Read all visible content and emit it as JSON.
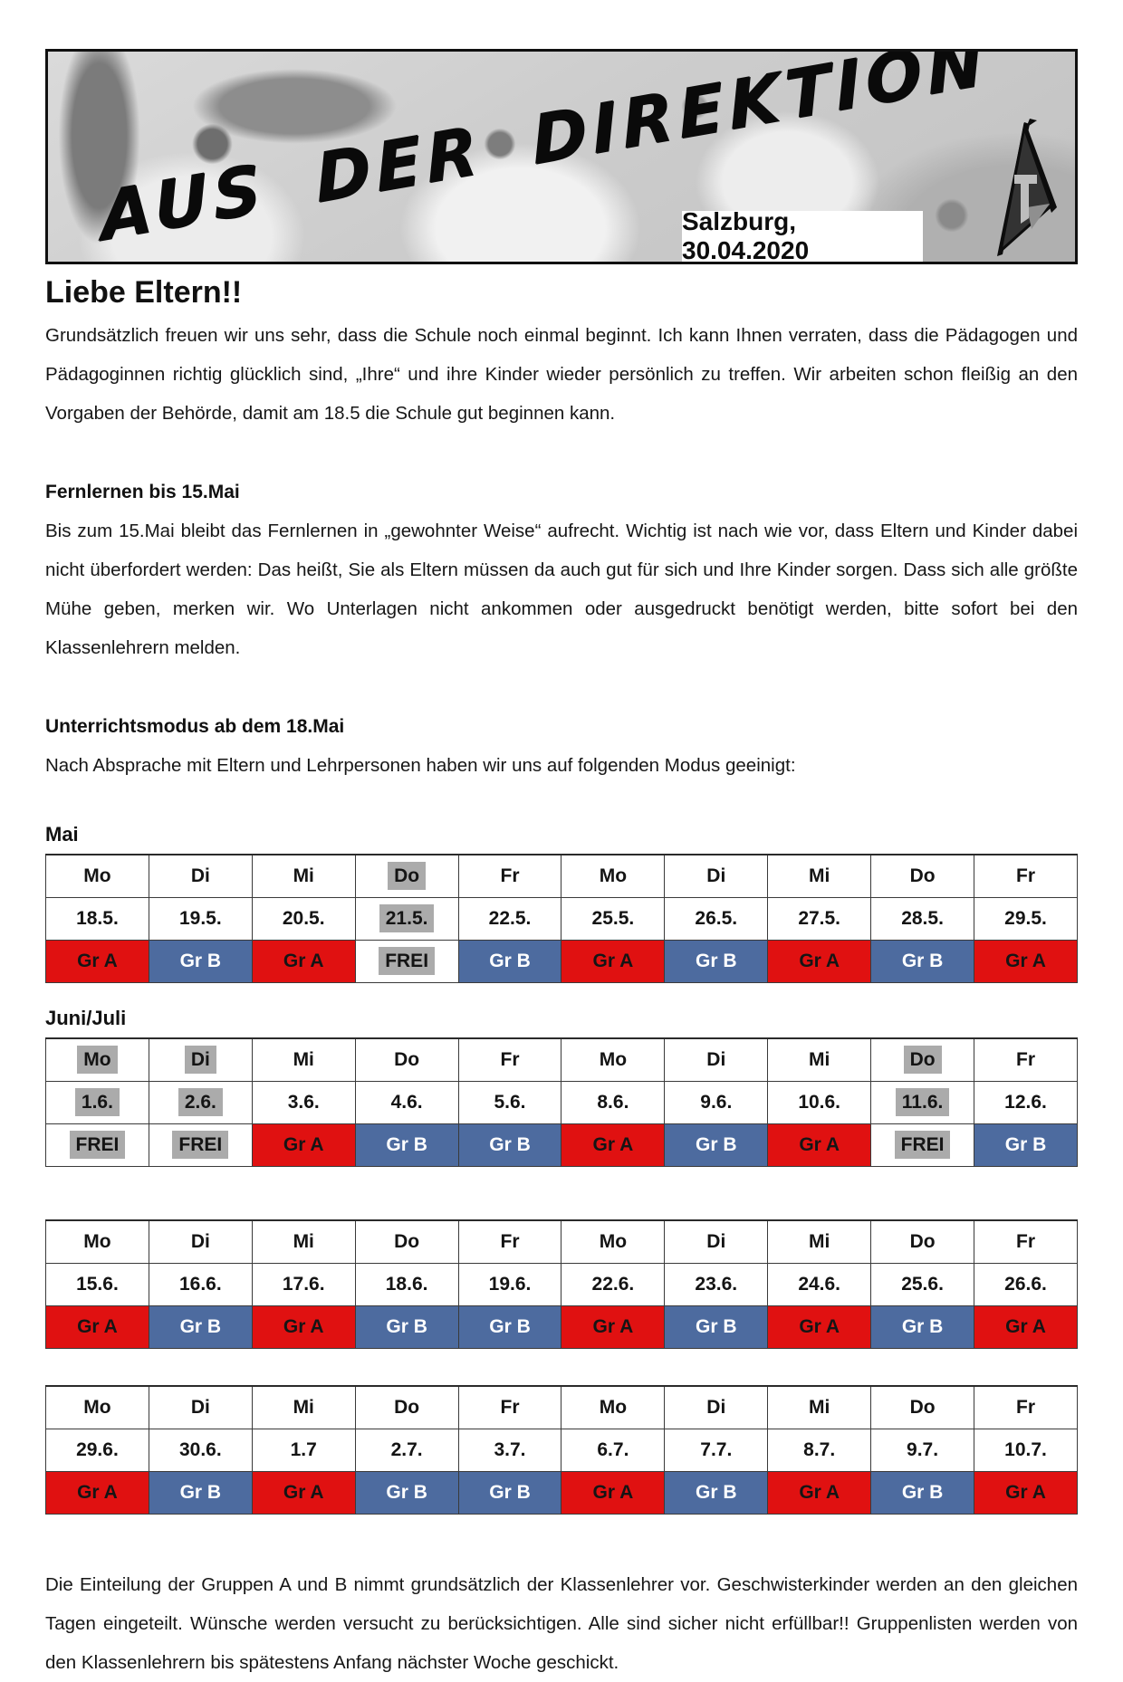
{
  "header": {
    "banner_title": "AUS DER DIREKTION",
    "date": "Salzburg, 30.04.2020",
    "logo_icon": "sail-logo"
  },
  "greeting": "Liebe Eltern!!",
  "intro": "Grundsätzlich freuen wir uns sehr, dass die Schule noch einmal beginnt. Ich kann Ihnen verraten, dass die Pädagogen und Pädagoginnen richtig glücklich sind, „Ihre“ und ihre Kinder wieder persönlich zu treffen. Wir arbeiten schon fleißig an den Vorgaben der Behörde, damit am 18.5 die Schule gut beginnen kann.",
  "sections": [
    {
      "heading": "Fernlernen bis 15.Mai",
      "body": "Bis zum 15.Mai bleibt das Fernlernen in „gewohnter Weise“ aufrecht. Wichtig ist nach wie vor, dass Eltern und Kinder dabei nicht überfordert werden: Das heißt, Sie als Eltern müssen da auch gut für sich und Ihre Kinder sorgen. Dass sich alle größte Mühe geben, merken wir. Wo Unterlagen nicht ankommen oder ausgedruckt benötigt werden, bitte sofort bei den Klassenlehrern melden."
    },
    {
      "heading": "Unterrichtsmodus ab dem 18.Mai",
      "body": "Nach Absprache mit Eltern und Lehrpersonen haben wir uns auf folgenden Modus geeinigt:"
    }
  ],
  "tables": [
    {
      "label": "Mai",
      "days": [
        {
          "text": "Mo",
          "highlight": false
        },
        {
          "text": "Di",
          "highlight": false
        },
        {
          "text": "Mi",
          "highlight": false
        },
        {
          "text": "Do",
          "highlight": true
        },
        {
          "text": "Fr",
          "highlight": false
        },
        {
          "text": "Mo",
          "highlight": false
        },
        {
          "text": "Di",
          "highlight": false
        },
        {
          "text": "Mi",
          "highlight": false
        },
        {
          "text": "Do",
          "highlight": false
        },
        {
          "text": "Fr",
          "highlight": false
        }
      ],
      "dates": [
        {
          "text": "18.5.",
          "highlight": false
        },
        {
          "text": "19.5.",
          "highlight": false
        },
        {
          "text": "20.5.",
          "highlight": false
        },
        {
          "text": "21.5.",
          "highlight": true
        },
        {
          "text": "22.5.",
          "highlight": false
        },
        {
          "text": "25.5.",
          "highlight": false
        },
        {
          "text": "26.5.",
          "highlight": false
        },
        {
          "text": "27.5.",
          "highlight": false
        },
        {
          "text": "28.5.",
          "highlight": false
        },
        {
          "text": "29.5.",
          "highlight": false
        }
      ],
      "groups": [
        {
          "text": "Gr A",
          "style": "a",
          "highlight": false
        },
        {
          "text": "Gr B",
          "style": "b",
          "highlight": false
        },
        {
          "text": "Gr A",
          "style": "a",
          "highlight": false
        },
        {
          "text": "FREI",
          "style": "frei",
          "highlight": true
        },
        {
          "text": "Gr B",
          "style": "b",
          "highlight": false
        },
        {
          "text": "Gr A",
          "style": "a",
          "highlight": false
        },
        {
          "text": "Gr B",
          "style": "b",
          "highlight": false
        },
        {
          "text": "Gr A",
          "style": "a",
          "highlight": false
        },
        {
          "text": "Gr B",
          "style": "b",
          "highlight": false
        },
        {
          "text": "Gr A",
          "style": "a",
          "highlight": false
        }
      ]
    },
    {
      "label": "Juni/Juli",
      "days": [
        {
          "text": "Mo",
          "highlight": true
        },
        {
          "text": "Di",
          "highlight": true
        },
        {
          "text": "Mi",
          "highlight": false
        },
        {
          "text": "Do",
          "highlight": false
        },
        {
          "text": "Fr",
          "highlight": false
        },
        {
          "text": "Mo",
          "highlight": false
        },
        {
          "text": "Di",
          "highlight": false
        },
        {
          "text": "Mi",
          "highlight": false
        },
        {
          "text": "Do",
          "highlight": true
        },
        {
          "text": "Fr",
          "highlight": false
        }
      ],
      "dates": [
        {
          "text": "1.6.",
          "highlight": true
        },
        {
          "text": "2.6.",
          "highlight": true
        },
        {
          "text": "3.6.",
          "highlight": false
        },
        {
          "text": "4.6.",
          "highlight": false
        },
        {
          "text": "5.6.",
          "highlight": false
        },
        {
          "text": "8.6.",
          "highlight": false
        },
        {
          "text": "9.6.",
          "highlight": false
        },
        {
          "text": "10.6.",
          "highlight": false
        },
        {
          "text": "11.6.",
          "highlight": true
        },
        {
          "text": "12.6.",
          "highlight": false
        }
      ],
      "groups": [
        {
          "text": "FREI",
          "style": "frei",
          "highlight": true
        },
        {
          "text": "FREI",
          "style": "frei",
          "highlight": true
        },
        {
          "text": "Gr A",
          "style": "a",
          "highlight": false
        },
        {
          "text": "Gr B",
          "style": "b",
          "highlight": false
        },
        {
          "text": "Gr B",
          "style": "b",
          "highlight": false
        },
        {
          "text": "Gr A",
          "style": "a",
          "highlight": false
        },
        {
          "text": "Gr B",
          "style": "b",
          "highlight": false
        },
        {
          "text": "Gr A",
          "style": "a",
          "highlight": false
        },
        {
          "text": "FREI",
          "style": "frei",
          "highlight": true
        },
        {
          "text": "Gr B",
          "style": "b",
          "highlight": false
        }
      ]
    },
    {
      "label": null,
      "days": [
        {
          "text": "Mo",
          "highlight": false
        },
        {
          "text": "Di",
          "highlight": false
        },
        {
          "text": "Mi",
          "highlight": false
        },
        {
          "text": "Do",
          "highlight": false
        },
        {
          "text": "Fr",
          "highlight": false
        },
        {
          "text": "Mo",
          "highlight": false
        },
        {
          "text": "Di",
          "highlight": false
        },
        {
          "text": "Mi",
          "highlight": false
        },
        {
          "text": "Do",
          "highlight": false
        },
        {
          "text": "Fr",
          "highlight": false
        }
      ],
      "dates": [
        {
          "text": "15.6.",
          "highlight": false
        },
        {
          "text": "16.6.",
          "highlight": false
        },
        {
          "text": "17.6.",
          "highlight": false
        },
        {
          "text": "18.6.",
          "highlight": false
        },
        {
          "text": "19.6.",
          "highlight": false
        },
        {
          "text": "22.6.",
          "highlight": false
        },
        {
          "text": "23.6.",
          "highlight": false
        },
        {
          "text": "24.6.",
          "highlight": false
        },
        {
          "text": "25.6.",
          "highlight": false
        },
        {
          "text": "26.6.",
          "highlight": false
        }
      ],
      "groups": [
        {
          "text": "Gr A",
          "style": "a",
          "highlight": false
        },
        {
          "text": "Gr B",
          "style": "b",
          "highlight": false
        },
        {
          "text": "Gr A",
          "style": "a",
          "highlight": false
        },
        {
          "text": "Gr B",
          "style": "b",
          "highlight": false
        },
        {
          "text": "Gr B",
          "style": "b",
          "highlight": false
        },
        {
          "text": "Gr A",
          "style": "a",
          "highlight": false
        },
        {
          "text": "Gr B",
          "style": "b",
          "highlight": false
        },
        {
          "text": "Gr A",
          "style": "a",
          "highlight": false
        },
        {
          "text": "Gr B",
          "style": "b",
          "highlight": false
        },
        {
          "text": "Gr A",
          "style": "a",
          "highlight": false
        }
      ]
    },
    {
      "label": null,
      "days": [
        {
          "text": "Mo",
          "highlight": false
        },
        {
          "text": "Di",
          "highlight": false
        },
        {
          "text": "Mi",
          "highlight": false
        },
        {
          "text": "Do",
          "highlight": false
        },
        {
          "text": "Fr",
          "highlight": false
        },
        {
          "text": "Mo",
          "highlight": false
        },
        {
          "text": "Di",
          "highlight": false
        },
        {
          "text": "Mi",
          "highlight": false
        },
        {
          "text": "Do",
          "highlight": false
        },
        {
          "text": "Fr",
          "highlight": false
        }
      ],
      "dates": [
        {
          "text": "29.6.",
          "highlight": false
        },
        {
          "text": "30.6.",
          "highlight": false
        },
        {
          "text": "1.7",
          "highlight": false
        },
        {
          "text": "2.7.",
          "highlight": false
        },
        {
          "text": "3.7.",
          "highlight": false
        },
        {
          "text": "6.7.",
          "highlight": false
        },
        {
          "text": "7.7.",
          "highlight": false
        },
        {
          "text": "8.7.",
          "highlight": false
        },
        {
          "text": "9.7.",
          "highlight": false
        },
        {
          "text": "10.7.",
          "highlight": false
        }
      ],
      "groups": [
        {
          "text": "Gr A",
          "style": "a",
          "highlight": false
        },
        {
          "text": "Gr B",
          "style": "b",
          "highlight": false
        },
        {
          "text": "Gr A",
          "style": "a",
          "highlight": false
        },
        {
          "text": "Gr B",
          "style": "b",
          "highlight": false
        },
        {
          "text": "Gr B",
          "style": "b",
          "highlight": false
        },
        {
          "text": "Gr A",
          "style": "a",
          "highlight": false
        },
        {
          "text": "Gr B",
          "style": "b",
          "highlight": false
        },
        {
          "text": "Gr A",
          "style": "a",
          "highlight": false
        },
        {
          "text": "Gr B",
          "style": "b",
          "highlight": false
        },
        {
          "text": "Gr A",
          "style": "a",
          "highlight": false
        }
      ]
    }
  ],
  "closing": "Die Einteilung der Gruppen A und B nimmt grundsätzlich der Klassenlehrer vor. Geschwisterkinder werden an den gleichen Tagen eingeteilt. Wünsche werden versucht zu berücksichtigen. Alle sind sicher nicht erfüllbar!! Gruppenlisten werden von den Klassenlehrern bis spätestens Anfang nächster Woche geschickt.",
  "colors": {
    "group_a_red": "#E01111",
    "group_b_blue": "#4D6B9F",
    "highlight_gray": "#ABABAB"
  }
}
